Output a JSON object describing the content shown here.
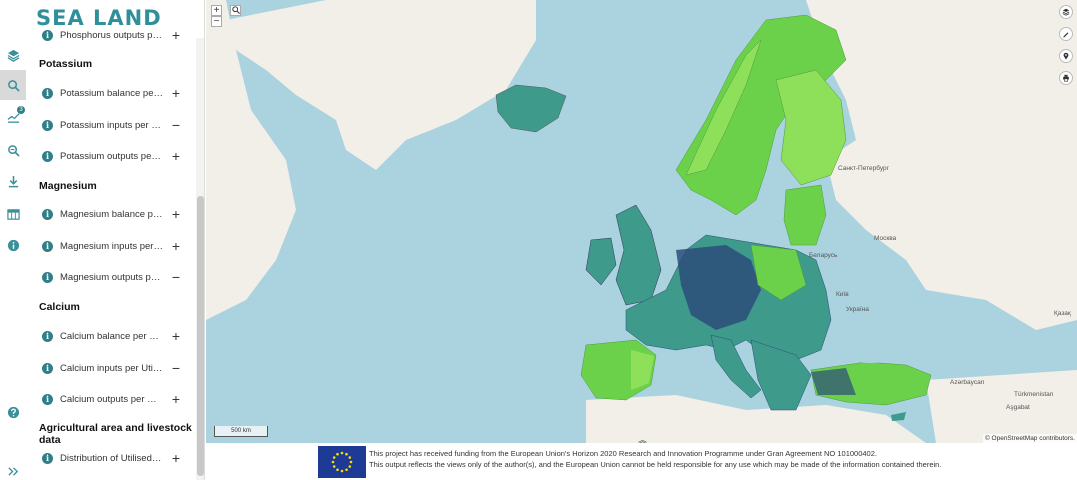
{
  "app": {
    "logo": "SEA LAND"
  },
  "sidebar": {
    "rail": [
      {
        "name": "layers-icon",
        "active": false
      },
      {
        "name": "search-icon",
        "active": true
      },
      {
        "name": "legend-icon",
        "active": false,
        "badge": "3"
      },
      {
        "name": "zoom-search-icon",
        "active": false
      },
      {
        "name": "download-icon",
        "active": false
      },
      {
        "name": "table-icon",
        "active": false
      },
      {
        "name": "info-icon",
        "active": false
      },
      {
        "name": "help-icon",
        "active": false
      },
      {
        "name": "expand-icon",
        "active": false
      }
    ],
    "truncated_top_item": "Phosphorus outputs per Uti...",
    "sections": [
      {
        "title": "Potassium",
        "items": [
          {
            "label": "Potassium balance per Utilised agricultural area",
            "toggle": "+"
          },
          {
            "label": "Potassium inputs per Utilised agricultural area",
            "toggle": "−"
          },
          {
            "label": "Potassium outputs per Utilised agricultural area",
            "toggle": "+"
          }
        ]
      },
      {
        "title": "Magnesium",
        "items": [
          {
            "label": "Magnesium balance per Utilised agricultural area",
            "toggle": "+"
          },
          {
            "label": "Magnesium inputs per Utilised agricultural area",
            "toggle": "+"
          },
          {
            "label": "Magnesium outputs per Utilised agricultural area",
            "toggle": "−"
          }
        ]
      },
      {
        "title": "Calcium",
        "items": [
          {
            "label": "Calcium balance per Utilised agricultural area",
            "toggle": "+"
          },
          {
            "label": "Calcium inputs per Utilised agricultural area",
            "toggle": "−"
          },
          {
            "label": "Calcium outputs per Utilised agricultural area",
            "toggle": "+"
          }
        ]
      },
      {
        "title": "Agricultural area and livestock data",
        "items": [
          {
            "label": "Distribution of Utilised agricultural area",
            "toggle": "+"
          }
        ]
      }
    ]
  },
  "map": {
    "zoom_in": "+",
    "zoom_out": "−",
    "tools": [
      "layers-icon",
      "pencil-icon",
      "pin-icon",
      "print-icon"
    ],
    "scale_label": "500 km",
    "attribution": "© OpenStreetMap contributors.",
    "places": {
      "spb": "Санкт-Петербург",
      "moscow": "Москва",
      "belarus": "Беларусь",
      "kyiv": "Київ",
      "ukraine": "Україна",
      "azerbaijan": "Azərbaycan",
      "turkmenistan": "Türkmenistan",
      "ashgabat": "Aşgabat",
      "kazakhstan": "Қазақ"
    },
    "colors": {
      "sea": "#aad3df",
      "land": "#f2efe9",
      "teal": "#3e9a8a",
      "green": "#6cd14a",
      "light_green": "#8ee05a",
      "navy": "#2b4d7a"
    }
  },
  "footer": {
    "line1": "This project has received funding from the European Union's Horizon 2020 Research and Innovation Programme under Gran Agreement NO 101000402.",
    "line2": "This output reflects the views only of the author(s), and the European Union cannot be held responsible for any use which may be made of the information contained therein."
  }
}
